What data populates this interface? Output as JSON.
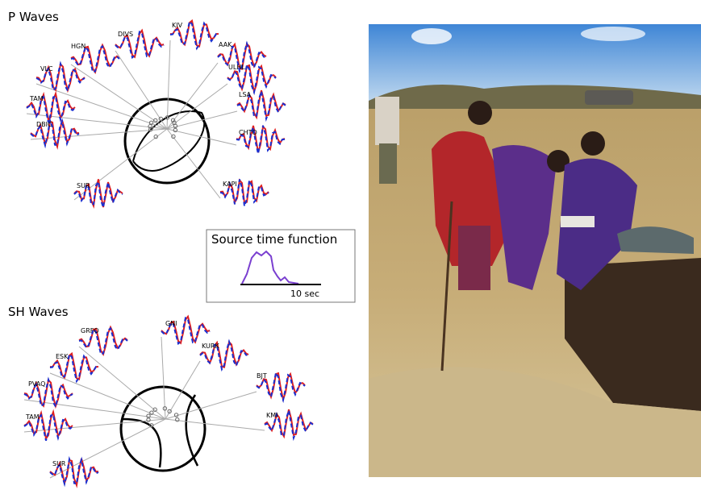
{
  "p_waves": {
    "title": "P Waves",
    "stations": [
      "HGN",
      "DIVS",
      "KIV",
      "AAK",
      "VLC",
      "ULHL",
      "TAM",
      "LSA",
      "DBIC",
      "CHTO",
      "SUR",
      "KAPI"
    ]
  },
  "source_time_function": {
    "title": "Source time function",
    "scale_label": "10 sec"
  },
  "sh_waves": {
    "title": "SH Waves",
    "stations": [
      "GRFO",
      "GNI",
      "ESK",
      "KURK",
      "PVAQ",
      "BJT",
      "TAM",
      "KMI",
      "SUR"
    ]
  }
}
